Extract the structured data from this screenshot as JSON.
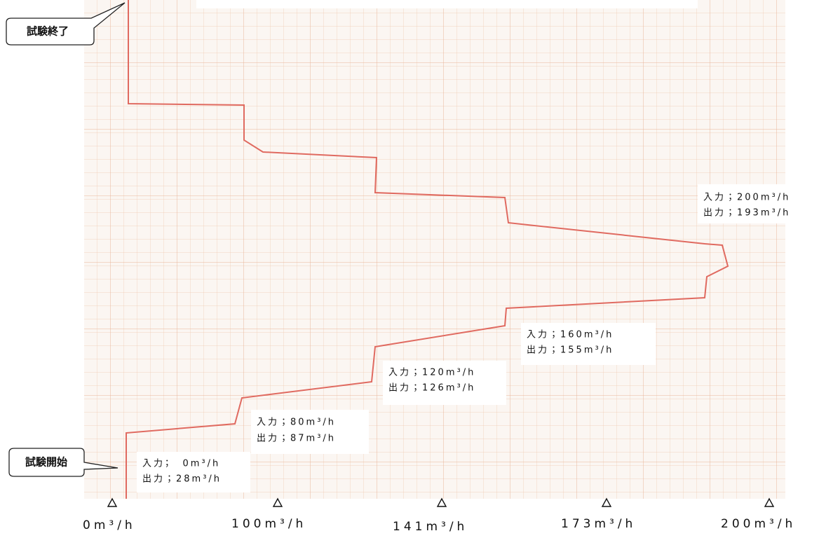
{
  "callouts": {
    "end": "試験終了",
    "start": "試験開始"
  },
  "annotations": [
    {
      "input": "入力；　0m³/h",
      "output": "出力；28m³/h"
    },
    {
      "input": "入力；80m³/h",
      "output": "出力；87m³/h"
    },
    {
      "input": "入力；120m³/h",
      "output": "出力；126m³/h"
    },
    {
      "input": "入力；160m³/h",
      "output": "出力；155m³/h"
    },
    {
      "input": "入力；200m³/h",
      "output": "出力；193m³/h"
    }
  ],
  "axis_labels": [
    "0m³/h",
    "100m³/h",
    "141m³/h",
    "173m³/h",
    "200m³/h"
  ]
}
